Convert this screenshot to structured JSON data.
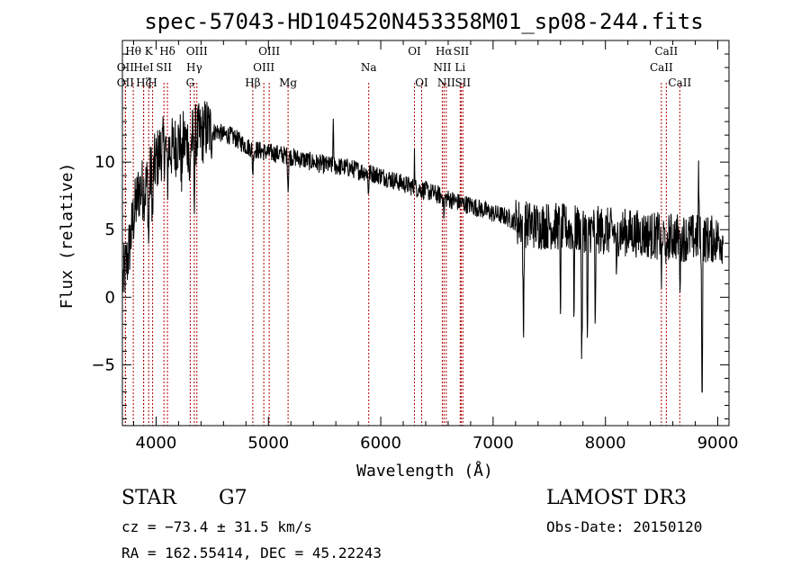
{
  "chart_data": {
    "type": "line",
    "title": "spec-57043-HD104520N453358M01_sp08-244.fits",
    "xlabel": "Wavelength (Å)",
    "ylabel": "Flux (relative)",
    "xlim": [
      3700,
      9100
    ],
    "ylim": [
      -9.5,
      19
    ],
    "xticks": [
      {
        "value": 4000,
        "label": "4000"
      },
      {
        "value": 5000,
        "label": "5000"
      },
      {
        "value": 6000,
        "label": "6000"
      },
      {
        "value": 7000,
        "label": "7000"
      },
      {
        "value": 8000,
        "label": "8000"
      },
      {
        "value": 9000,
        "label": "9000"
      }
    ],
    "yticks": [
      {
        "value": -5,
        "label": "−5"
      },
      {
        "value": 0,
        "label": "0"
      },
      {
        "value": 5,
        "label": "5"
      },
      {
        "value": 10,
        "label": "10"
      }
    ],
    "spectrum_outline": [
      [
        3700,
        1
      ],
      [
        3750,
        3
      ],
      [
        3800,
        6
      ],
      [
        3850,
        8
      ],
      [
        3900,
        8
      ],
      [
        3950,
        9
      ],
      [
        4000,
        10
      ],
      [
        4050,
        11
      ],
      [
        4100,
        11
      ],
      [
        4150,
        11
      ],
      [
        4200,
        11.5
      ],
      [
        4250,
        11.5
      ],
      [
        4300,
        11.5
      ],
      [
        4350,
        12
      ],
      [
        4400,
        12
      ],
      [
        4450,
        12.5
      ],
      [
        4500,
        12.2
      ],
      [
        4550,
        12.3
      ],
      [
        4600,
        12
      ],
      [
        4650,
        12
      ],
      [
        4700,
        11.8
      ],
      [
        4750,
        11.5
      ],
      [
        4800,
        11.2
      ],
      [
        4850,
        11
      ],
      [
        4900,
        10.9
      ],
      [
        4950,
        10.8
      ],
      [
        5000,
        10.7
      ],
      [
        5100,
        10.6
      ],
      [
        5200,
        10.4
      ],
      [
        5300,
        10.2
      ],
      [
        5400,
        10.0
      ],
      [
        5500,
        9.8
      ],
      [
        5600,
        9.7
      ],
      [
        5700,
        9.6
      ],
      [
        5800,
        9.4
      ],
      [
        5900,
        9.2
      ],
      [
        6000,
        9.0
      ],
      [
        6100,
        8.7
      ],
      [
        6200,
        8.4
      ],
      [
        6300,
        8.1
      ],
      [
        6400,
        7.9
      ],
      [
        6500,
        7.6
      ],
      [
        6600,
        7.3
      ],
      [
        6700,
        7.0
      ],
      [
        6800,
        6.8
      ],
      [
        6900,
        6.5
      ],
      [
        7000,
        6.2
      ],
      [
        7100,
        6.0
      ],
      [
        7200,
        5.6
      ],
      [
        7300,
        5.4
      ],
      [
        7400,
        5.3
      ],
      [
        7500,
        5.3
      ],
      [
        7600,
        5.2
      ],
      [
        7700,
        5.0
      ],
      [
        7800,
        5.1
      ],
      [
        7900,
        5.0
      ],
      [
        8000,
        4.9
      ],
      [
        8100,
        4.8
      ],
      [
        8200,
        4.8
      ],
      [
        8300,
        4.7
      ],
      [
        8400,
        4.6
      ],
      [
        8500,
        4.5
      ],
      [
        8600,
        4.5
      ],
      [
        8700,
        4.4
      ],
      [
        8800,
        4.4
      ],
      [
        8900,
        4.3
      ],
      [
        9000,
        4.3
      ],
      [
        9050,
        4.2
      ]
    ],
    "absorption_features": [
      {
        "x": 3934,
        "depth": 5
      },
      {
        "x": 3969,
        "depth": 4
      },
      {
        "x": 4101,
        "depth": 3
      },
      {
        "x": 4227,
        "depth": 3
      },
      {
        "x": 4300,
        "depth": 4
      },
      {
        "x": 4340,
        "depth": 4
      },
      {
        "x": 4861,
        "depth": 2
      },
      {
        "x": 5175,
        "depth": 2.5
      },
      {
        "x": 5890,
        "depth": 1.5
      },
      {
        "x": 6563,
        "depth": 1.5
      },
      {
        "x": 7270,
        "depth": 10
      },
      {
        "x": 7600,
        "depth": 6
      },
      {
        "x": 7720,
        "depth": 6
      },
      {
        "x": 7790,
        "depth": 11
      },
      {
        "x": 7840,
        "depth": 9
      },
      {
        "x": 7910,
        "depth": 8
      },
      {
        "x": 8100,
        "depth": 4
      },
      {
        "x": 8500,
        "depth": 3
      },
      {
        "x": 8545,
        "depth": 3
      },
      {
        "x": 8665,
        "depth": 3
      },
      {
        "x": 8860,
        "depth": 13
      }
    ],
    "emission_features": [
      {
        "x": 5577,
        "height": 4
      },
      {
        "x": 6300,
        "height": 2.5
      },
      {
        "x": 8830,
        "height": 6
      }
    ],
    "reference_lines": [
      {
        "x": 3797,
        "label": "Hθ",
        "row": 0
      },
      {
        "x": 3727,
        "label": "OII",
        "row": 1
      },
      {
        "x": 3727,
        "label": "OII",
        "row": 2
      },
      {
        "x": 3889,
        "label": "Hζ",
        "row": 2
      },
      {
        "x": 3934,
        "label": "K",
        "row": 0
      },
      {
        "x": 3969,
        "label": "H",
        "row": 2
      },
      {
        "x": 3889,
        "label": "HeI",
        "row": 1
      },
      {
        "x": 4070,
        "label": "SII",
        "row": 1
      },
      {
        "x": 4101,
        "label": "Hδ",
        "row": 0
      },
      {
        "x": 4304,
        "label": "G",
        "row": 2
      },
      {
        "x": 4340,
        "label": "Hγ",
        "row": 1
      },
      {
        "x": 4363,
        "label": "OIII",
        "row": 0
      },
      {
        "x": 4861,
        "label": "Hβ",
        "row": 2
      },
      {
        "x": 4959,
        "label": "OIII",
        "row": 1
      },
      {
        "x": 5007,
        "label": "OIII",
        "row": 0
      },
      {
        "x": 5175,
        "label": "Mg",
        "row": 2
      },
      {
        "x": 5893,
        "label": "Na",
        "row": 1
      },
      {
        "x": 6300,
        "label": "OI",
        "row": 0
      },
      {
        "x": 6364,
        "label": "OI",
        "row": 2
      },
      {
        "x": 6548,
        "label": "NII",
        "row": 1
      },
      {
        "x": 6563,
        "label": "Hα",
        "row": 0
      },
      {
        "x": 6583,
        "label": "NII",
        "row": 2
      },
      {
        "x": 6707,
        "label": "Li",
        "row": 1
      },
      {
        "x": 6716,
        "label": "SII",
        "row": 0
      },
      {
        "x": 6731,
        "label": "SII",
        "row": 2
      },
      {
        "x": 8498,
        "label": "CaII",
        "row": 1
      },
      {
        "x": 8542,
        "label": "CaII",
        "row": 0
      },
      {
        "x": 8662,
        "label": "CaII",
        "row": 2
      }
    ],
    "grid": false,
    "line_color": "#000000",
    "reference_line_color": "#b00000"
  },
  "info": {
    "object_class": "STAR",
    "subclass": "G7",
    "survey": "LAMOST DR3",
    "cz": "cz = −73.4 ± 31.5 km/s",
    "obs_date": "Obs-Date: 20150120",
    "coords": "RA = 162.55414, DEC =  45.22243"
  }
}
